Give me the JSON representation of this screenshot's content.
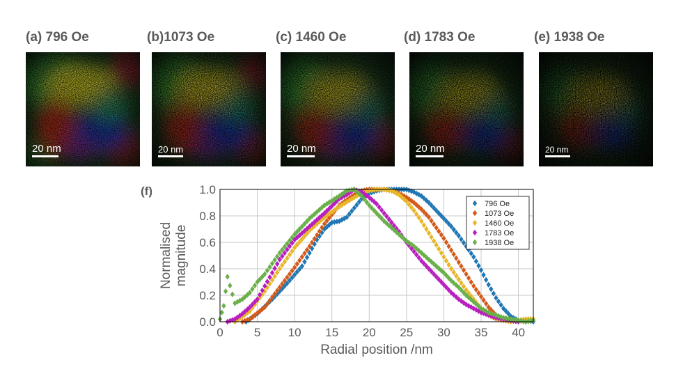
{
  "panels": [
    {
      "label": "(a) 796 Oe",
      "scale_bar": "20 nm"
    },
    {
      "label": "(b)1073 Oe",
      "scale_bar": "20 nm"
    },
    {
      "label": "(c) 1460 Oe",
      "scale_bar": "20 nm"
    },
    {
      "label": "(d) 1783 Oe",
      "scale_bar": "20 nm"
    },
    {
      "label": "(e) 1938 Oe",
      "scale_bar": "20 nm"
    }
  ],
  "chart_label": "(f)",
  "chart_data": {
    "type": "scatter",
    "title": "",
    "xlabel": "Radial position /nm",
    "ylabel_lines": [
      "Normalised",
      "magnitude"
    ],
    "xlim": [
      0,
      42
    ],
    "ylim": [
      0,
      1
    ],
    "xticks": [
      "0",
      "5",
      "10",
      "15",
      "20",
      "25",
      "30",
      "35",
      "40"
    ],
    "yticks": [
      "0.0",
      "0.2",
      "0.4",
      "0.6",
      "0.8",
      "1.0"
    ],
    "grid": true,
    "legend_position": "top-right",
    "marker": "diamond",
    "series": [
      {
        "name": "796 Oe",
        "color": "#1f77b4",
        "x": [
          3.5,
          5,
          7,
          9,
          11,
          12,
          13,
          14,
          15,
          16,
          17,
          18,
          19,
          20,
          21,
          22,
          23,
          24,
          25,
          26,
          27,
          28,
          29,
          30,
          31,
          32,
          33,
          34,
          35,
          36,
          37,
          38,
          39,
          40,
          41,
          42
        ],
        "y": [
          0.0,
          0.06,
          0.17,
          0.29,
          0.42,
          0.52,
          0.62,
          0.7,
          0.75,
          0.76,
          0.79,
          0.86,
          0.93,
          0.97,
          0.99,
          1.0,
          1.0,
          1.0,
          1.0,
          0.98,
          0.95,
          0.9,
          0.84,
          0.78,
          0.72,
          0.65,
          0.57,
          0.49,
          0.39,
          0.28,
          0.18,
          0.1,
          0.04,
          0.01,
          0.01,
          0.0
        ]
      },
      {
        "name": "1073 Oe",
        "color": "#d45a1b",
        "x": [
          3,
          4,
          6,
          8,
          10,
          12,
          14,
          16,
          18,
          19,
          20,
          21,
          22,
          23,
          24,
          25,
          26,
          27,
          28,
          29,
          30,
          31,
          32,
          33,
          34,
          35,
          36,
          37,
          38,
          39,
          40,
          41,
          42
        ],
        "y": [
          0.0,
          0.02,
          0.11,
          0.26,
          0.41,
          0.57,
          0.74,
          0.88,
          0.96,
          0.99,
          1.0,
          1.0,
          1.0,
          0.99,
          0.97,
          0.94,
          0.9,
          0.85,
          0.79,
          0.71,
          0.63,
          0.54,
          0.45,
          0.36,
          0.27,
          0.19,
          0.11,
          0.05,
          0.02,
          0.01,
          0.01,
          0.0,
          0.01
        ]
      },
      {
        "name": "1460 Oe",
        "color": "#e8b62a",
        "x": [
          2,
          4,
          6,
          8,
          10,
          12,
          14,
          16,
          18,
          19,
          20,
          21,
          22,
          23,
          24,
          25,
          26,
          27,
          28,
          29,
          30,
          31,
          32,
          33,
          34,
          35,
          36,
          37,
          38,
          39,
          40,
          41,
          42
        ],
        "y": [
          0.0,
          0.08,
          0.23,
          0.4,
          0.56,
          0.69,
          0.79,
          0.87,
          0.94,
          0.97,
          0.99,
          1.0,
          1.0,
          0.99,
          0.96,
          0.91,
          0.84,
          0.76,
          0.67,
          0.58,
          0.49,
          0.4,
          0.32,
          0.24,
          0.17,
          0.1,
          0.05,
          0.02,
          0.01,
          0.0,
          0.01,
          0.02,
          0.02
        ]
      },
      {
        "name": "1783 Oe",
        "color": "#b81fbe",
        "x": [
          1,
          2,
          3,
          4,
          5,
          6,
          8,
          10,
          12,
          14,
          16,
          17,
          18,
          19,
          20,
          21,
          22,
          23,
          24,
          25,
          26,
          27,
          28,
          29,
          30,
          31,
          32,
          33,
          34,
          35,
          36,
          37,
          38,
          39,
          40
        ],
        "y": [
          0.0,
          0.02,
          0.06,
          0.11,
          0.17,
          0.27,
          0.47,
          0.62,
          0.72,
          0.82,
          0.93,
          0.96,
          1.0,
          0.98,
          0.94,
          0.89,
          0.82,
          0.75,
          0.68,
          0.6,
          0.53,
          0.46,
          0.4,
          0.34,
          0.28,
          0.22,
          0.17,
          0.13,
          0.1,
          0.07,
          0.05,
          0.03,
          0.02,
          0.01,
          0.0
        ]
      },
      {
        "name": "1938 Oe",
        "color": "#6ab04a",
        "x": [
          0,
          0.5,
          1,
          2,
          3,
          4,
          5,
          6,
          8,
          10,
          12,
          14,
          16,
          17,
          18,
          19,
          20,
          21,
          22,
          23,
          24,
          25,
          26,
          27,
          28,
          29,
          30,
          31,
          32,
          33,
          34,
          35,
          36,
          37,
          38,
          39,
          40,
          41,
          42
        ],
        "y": [
          0.02,
          0.12,
          0.34,
          0.14,
          0.17,
          0.22,
          0.3,
          0.36,
          0.52,
          0.66,
          0.78,
          0.88,
          0.95,
          0.99,
          1.0,
          0.95,
          0.88,
          0.82,
          0.76,
          0.71,
          0.66,
          0.61,
          0.57,
          0.52,
          0.47,
          0.42,
          0.37,
          0.31,
          0.26,
          0.2,
          0.15,
          0.1,
          0.07,
          0.05,
          0.03,
          0.02,
          0.01,
          0.0,
          0.01
        ]
      }
    ]
  }
}
